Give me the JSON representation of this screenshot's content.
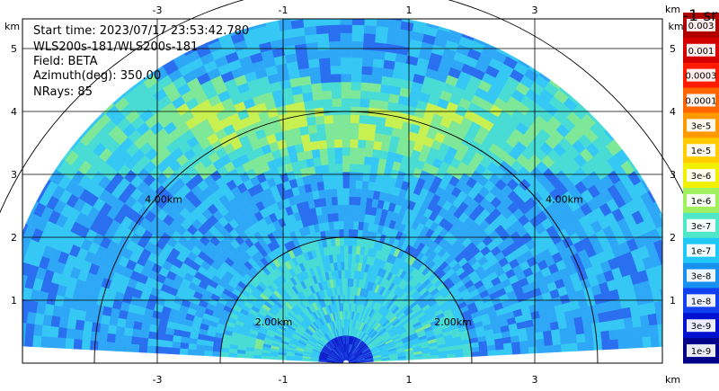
{
  "info": {
    "start_time": "Start time: 2023/07/17 23:53:42.780",
    "instrument": "WLS200s-181/WLS200s-181",
    "field": "Field: BETA",
    "azimuth": "Azimuth(deg): 350.00",
    "nrays": "NRays: 85"
  },
  "chart_data": {
    "type": "heatmap",
    "subtype": "RHI lidar scan (polar, half-disc)",
    "xlabel": "km",
    "ylabel": "km",
    "xlim": [
      -5.15,
      5.15
    ],
    "ylim": [
      0,
      5.7
    ],
    "x_ticks": [
      -3,
      -1,
      1,
      3
    ],
    "y_ticks": [
      1,
      2,
      3,
      4,
      5
    ],
    "grid": true,
    "range_rings_km": [
      2,
      4,
      6
    ],
    "range_ring_labels": [
      "2.00km",
      "2.00km",
      "4.00km",
      "4.00km"
    ],
    "max_range_km": 5.55,
    "nrays": 85,
    "colorbar": {
      "unit": "-1 sr",
      "scale": "log",
      "labels": [
        "0.003",
        "0.001",
        "0.0003",
        "0.0001",
        "3e-5",
        "1e-5",
        "3e-6",
        "1e-6",
        "3e-7",
        "1e-7",
        "3e-8",
        "1e-8",
        "3e-9",
        "1e-9"
      ],
      "colors": [
        "#b00000",
        "#d40000",
        "#ff1a00",
        "#ff6600",
        "#ff9900",
        "#ffcc00",
        "#f0f000",
        "#a0f060",
        "#50e6c8",
        "#20c8f8",
        "#1890f0",
        "#1040f0",
        "#0010d0",
        "#000088"
      ]
    }
  }
}
